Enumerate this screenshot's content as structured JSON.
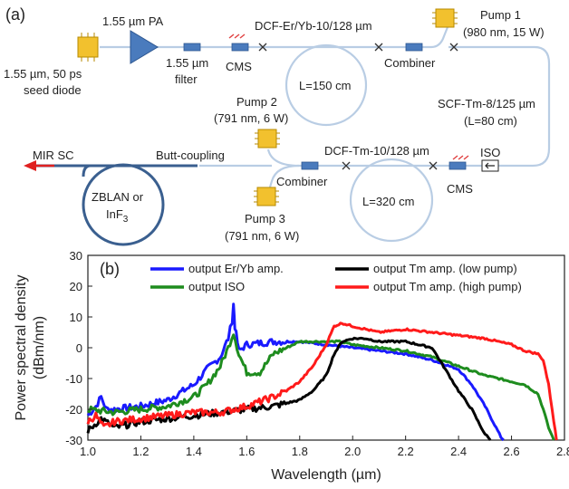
{
  "panel_a": {
    "label": "(a)",
    "seed": {
      "line1": "1.55 µm, 50 ps",
      "line2": "seed diode"
    },
    "pa": "1.55 µm PA",
    "filter": {
      "line1": "1.55 µm",
      "line2": "filter"
    },
    "cms": "CMS",
    "dcf_eryb": "DCF-Er/Yb-10/128 µm",
    "loop1": "L=150 cm",
    "combiner": "Combiner",
    "pump1": {
      "line1": "Pump 1",
      "line2": "(980 nm, 15 W)"
    },
    "scf": {
      "line1": "SCF-Tm-8/125 µm",
      "line2": "(L=80 cm)"
    },
    "pump2": {
      "line1": "Pump 2",
      "line2": "(791 nm, 6 W)"
    },
    "mir": "MIR SC",
    "butt": "Butt-coupling",
    "dcf_tm": "DCF-Tm-10/128 µm",
    "iso": "ISO",
    "zblan": {
      "line1": "ZBLAN or",
      "line2": "InF",
      "sub": "3"
    },
    "loop2": "L=320 cm",
    "pump3": {
      "line1": "Pump 3",
      "line2": "(791 nm, 6 W)"
    }
  },
  "panel_b": {
    "label": "(b)",
    "legend": [
      {
        "label": "output Er/Yb amp.",
        "color": "#1a1aff"
      },
      {
        "label": "output Tm amp. (low pump)",
        "color": "#000000"
      },
      {
        "label": "output ISO",
        "color": "#1e8c1e"
      },
      {
        "label": "output Tm amp. (high pump)",
        "color": "#ff1a1a"
      }
    ]
  },
  "chart_data": {
    "type": "line",
    "title": "",
    "xlabel": "Wavelength (µm)",
    "ylabel": "Power spectral density (dBm/nm)",
    "ylabel_line1": "Power spectral density",
    "ylabel_line2": "(dBm/nm)",
    "xlim": [
      1.0,
      2.8
    ],
    "ylim": [
      -30,
      30
    ],
    "xticks": [
      "1.0",
      "1.2",
      "1.4",
      "1.6",
      "1.8",
      "2.0",
      "2.2",
      "2.4",
      "2.6",
      "2.8"
    ],
    "yticks": [
      "30",
      "20",
      "10",
      "0",
      "-10",
      "-20",
      "-30"
    ],
    "grid": false,
    "legend_position": "top",
    "series": [
      {
        "name": "output Er/Yb amp.",
        "color": "#1a1aff",
        "x": [
          1.0,
          1.03,
          1.05,
          1.07,
          1.1,
          1.2,
          1.3,
          1.4,
          1.45,
          1.5,
          1.53,
          1.545,
          1.55,
          1.555,
          1.57,
          1.6,
          1.7,
          1.8,
          1.9,
          2.0,
          2.1,
          2.2,
          2.3,
          2.4,
          2.45,
          2.5,
          2.53,
          2.56,
          2.57
        ],
        "y": [
          -22,
          -19,
          -16,
          -20,
          -20,
          -19,
          -17,
          -12,
          -7,
          -3,
          3,
          9,
          14,
          7,
          -1,
          1,
          2,
          2,
          1,
          0,
          -1,
          -2,
          -4,
          -7,
          -12,
          -19,
          -24,
          -29,
          -30
        ]
      },
      {
        "name": "output ISO",
        "color": "#1e8c1e",
        "x": [
          1.0,
          1.1,
          1.2,
          1.3,
          1.4,
          1.45,
          1.5,
          1.53,
          1.55,
          1.57,
          1.6,
          1.65,
          1.7,
          1.75,
          1.8,
          1.85,
          1.9,
          1.95,
          2.0,
          2.1,
          2.2,
          2.3,
          2.4,
          2.5,
          2.6,
          2.65,
          2.7,
          2.72,
          2.74,
          2.76
        ],
        "y": [
          -20,
          -21,
          -20,
          -19,
          -16,
          -12,
          -6,
          0,
          5,
          -2,
          -8,
          -8,
          -2,
          0,
          2,
          2,
          2,
          2,
          1,
          0,
          -1,
          -3,
          -6,
          -9,
          -11,
          -12,
          -15,
          -20,
          -26,
          -30
        ]
      },
      {
        "name": "output Tm amp. (low pump)",
        "color": "#000000",
        "x": [
          1.0,
          1.05,
          1.1,
          1.2,
          1.3,
          1.4,
          1.5,
          1.6,
          1.7,
          1.8,
          1.85,
          1.9,
          1.93,
          1.96,
          2.0,
          2.05,
          2.1,
          2.2,
          2.3,
          2.35,
          2.4,
          2.45,
          2.48,
          2.5,
          2.52
        ],
        "y": [
          -27,
          -23,
          -26,
          -24,
          -23,
          -22,
          -21,
          -20,
          -19,
          -17,
          -14,
          -9,
          -2,
          2,
          3,
          3,
          2,
          2,
          0,
          -7,
          -14,
          -20,
          -25,
          -28,
          -30
        ]
      },
      {
        "name": "output Tm amp. (high pump)",
        "color": "#ff1a1a",
        "x": [
          1.0,
          1.03,
          1.06,
          1.1,
          1.2,
          1.3,
          1.4,
          1.5,
          1.6,
          1.7,
          1.75,
          1.8,
          1.85,
          1.9,
          1.93,
          1.96,
          2.0,
          2.05,
          2.1,
          2.2,
          2.3,
          2.4,
          2.5,
          2.6,
          2.65,
          2.7,
          2.72,
          2.74,
          2.76,
          2.77
        ],
        "y": [
          -24,
          -22,
          -26,
          -24,
          -23,
          -22,
          -21,
          -21,
          -19,
          -16,
          -14,
          -11,
          -6,
          1,
          7,
          8,
          7,
          6,
          5,
          6,
          5,
          4,
          3,
          1,
          -1,
          -2,
          -4,
          -12,
          -24,
          -30
        ]
      }
    ]
  }
}
